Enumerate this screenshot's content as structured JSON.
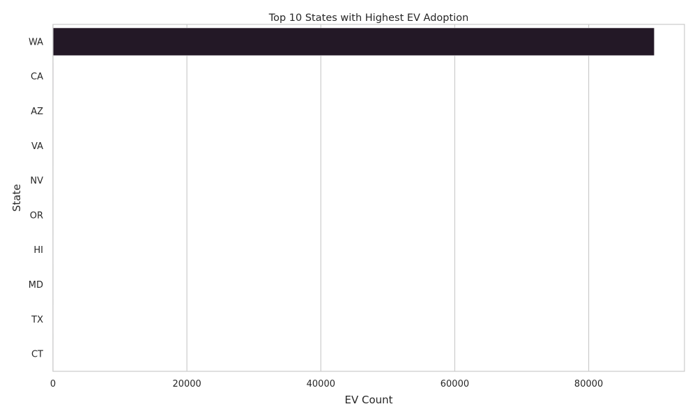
{
  "chart_data": {
    "type": "bar",
    "orientation": "horizontal",
    "title": "Top 10 States with Highest EV Adoption",
    "xlabel": "EV Count",
    "ylabel": "State",
    "categories": [
      "WA",
      "CA",
      "AZ",
      "VA",
      "NV",
      "OR",
      "HI",
      "MD",
      "TX",
      "CT"
    ],
    "values": [
      89800,
      90,
      10,
      9,
      8,
      8,
      7,
      6,
      6,
      5
    ],
    "xlim": [
      0,
      94300
    ],
    "xticks": [
      "0",
      "20000",
      "40000",
      "60000",
      "80000"
    ],
    "xtick_values": [
      0,
      20000,
      40000,
      60000,
      80000
    ],
    "grid": "x",
    "bar_colors": [
      "#231826",
      "#2e2233",
      "#3d2b47",
      "#4e3560",
      "#5d3f78",
      "#6a4a8e",
      "#7a59a0",
      "#8a6bb0",
      "#9a7fbe",
      "#ab94cb"
    ],
    "grid_color": "#cccccc",
    "spine_color": "#cccccc"
  }
}
